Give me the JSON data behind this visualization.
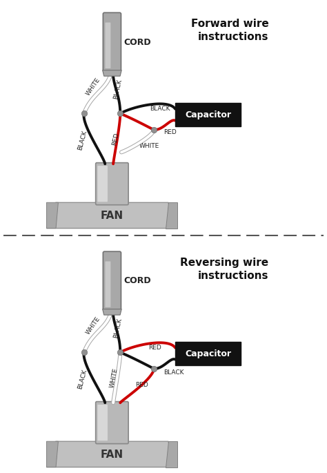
{
  "bg_color": "#ffffff",
  "title_forward": "Forward wire\ninstructions",
  "title_reverse": "Reversing wire\ninstructions",
  "capacitor_label": "Capacitor",
  "fan_label": "FAN",
  "cord_label": "CORD",
  "wire_lw": 2.8,
  "junction_size": 5,
  "cord_color": "#a8a8a8",
  "motor_color": "#b8b8b8",
  "fan_color": "#c0c0c0",
  "black_wire": "#111111",
  "red_wire": "#cc0000",
  "white_wire_outline": "#aaaaaa",
  "label_fontsize": 6.5,
  "title_fontsize": 11
}
